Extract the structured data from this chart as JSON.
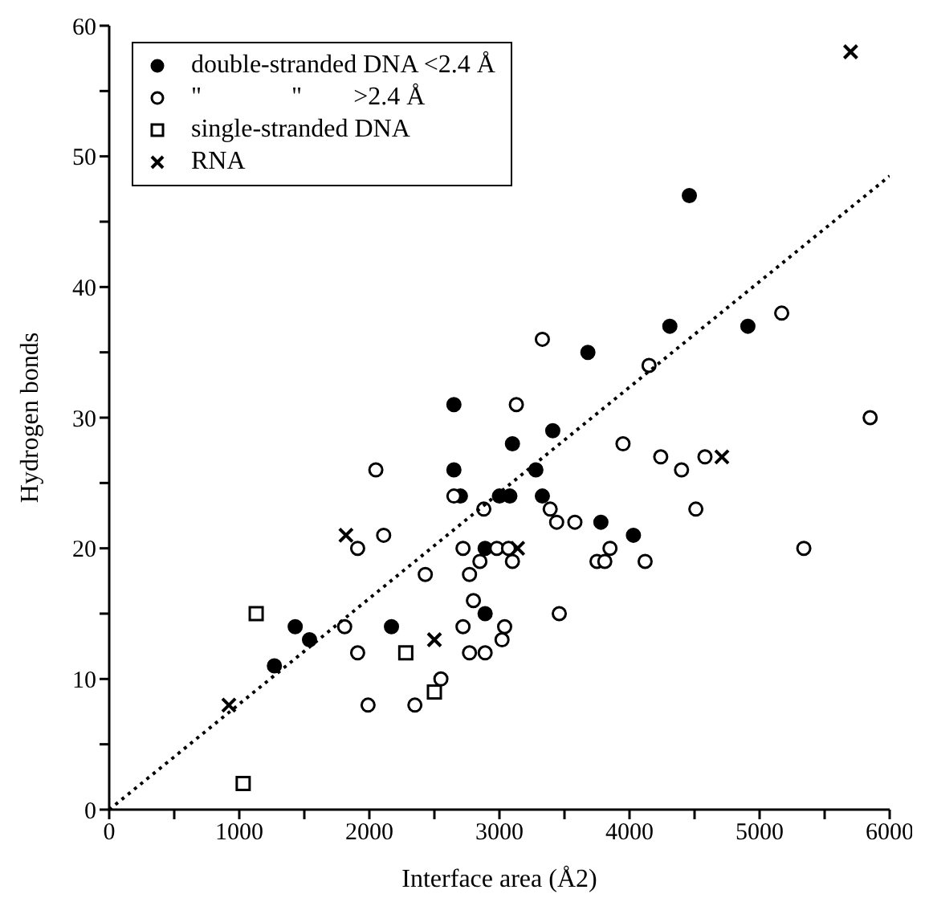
{
  "chart_data": {
    "type": "scatter",
    "xlabel": "Interface area (Å2)",
    "ylabel": "Hydrogen bonds",
    "xlim": [
      0,
      6000
    ],
    "xticks": [
      0,
      {
        "value": 500,
        "label": null
      },
      1000,
      {
        "value": 1500,
        "label": null
      },
      2000,
      {
        "value": 2500,
        "label": null
      },
      3000,
      {
        "value": 3500,
        "label": null
      },
      4000,
      {
        "value": 4500,
        "label": null
      },
      5000,
      {
        "value": 5500,
        "label": null
      },
      6000
    ],
    "ylim": [
      0,
      60
    ],
    "yticks": [
      0,
      {
        "value": 5,
        "label": null
      },
      10,
      {
        "value": 15,
        "label": null
      },
      20,
      {
        "value": 25,
        "label": null
      },
      30,
      {
        "value": 35,
        "label": null
      },
      40,
      {
        "value": 45,
        "label": null
      },
      50,
      {
        "value": 55,
        "label": null
      },
      60
    ],
    "grid": false,
    "legend": "top left",
    "series": [
      {
        "name": "double-stranded DNA <2.4 Å",
        "color": "#000000",
        "marker": "circle",
        "x": [
          1270,
          1430,
          1540,
          2170,
          2650,
          2650,
          2700,
          2890,
          2890,
          3000,
          3080,
          3100,
          3280,
          3330,
          3410,
          3680,
          3780,
          4030,
          4310,
          4460,
          4910
        ],
        "values": [
          11,
          14,
          13,
          14,
          31,
          26,
          24,
          15,
          20,
          24,
          24,
          28,
          26,
          24,
          29,
          35,
          22,
          21,
          37,
          47,
          37
        ]
      },
      {
        "name": "\"              \"        >2.4 Å",
        "color": "#000000",
        "marker": "circle",
        "x": [
          1810,
          1910,
          1910,
          1990,
          2050,
          2110,
          2350,
          2430,
          2550,
          2650,
          2720,
          2720,
          2770,
          2770,
          2800,
          2850,
          2880,
          2890,
          2980,
          3020,
          3040,
          3070,
          3100,
          3130,
          3330,
          3390,
          3440,
          3460,
          3580,
          3750,
          3810,
          3850,
          3950,
          4120,
          4150,
          4240,
          4400,
          4510,
          4580,
          5170,
          5340,
          5850
        ],
        "values": [
          14,
          12,
          20,
          8,
          26,
          21,
          8,
          18,
          10,
          24,
          20,
          14,
          18,
          12,
          16,
          19,
          23,
          12,
          20,
          13,
          14,
          20,
          19,
          31,
          36,
          23,
          22,
          15,
          22,
          19,
          19,
          20,
          28,
          19,
          34,
          27,
          26,
          23,
          27,
          38,
          20,
          30
        ]
      },
      {
        "name": "single-stranded DNA",
        "color": "#000000",
        "marker": "square",
        "x": [
          1030,
          1130,
          2280,
          2500
        ],
        "values": [
          2,
          15,
          12,
          9
        ]
      },
      {
        "name": "RNA",
        "color": "#000000",
        "marker": "cross",
        "x": [
          920,
          1820,
          2500,
          3140,
          4710,
          5700
        ],
        "values": [
          8,
          21,
          13,
          20,
          27,
          58
        ]
      },
      {
        "type": "line",
        "color": "#000000",
        "marker": "none",
        "line_style": "dotted",
        "x": [
          0,
          6000
        ],
        "values": [
          0,
          48.5
        ]
      }
    ]
  }
}
